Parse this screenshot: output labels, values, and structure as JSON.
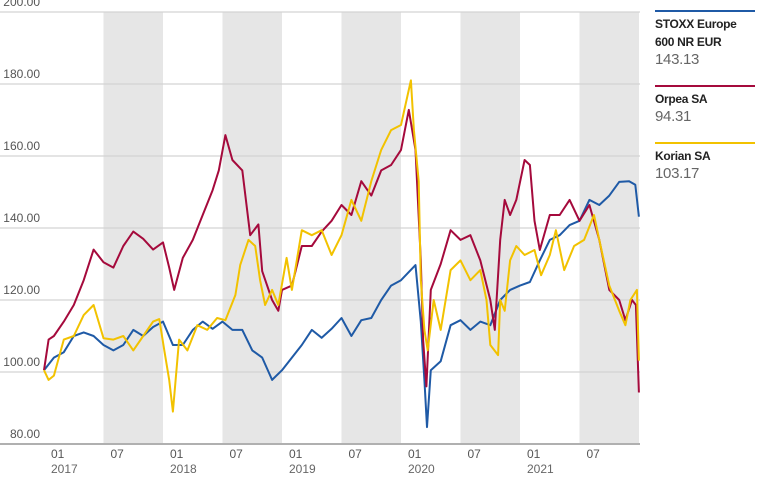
{
  "chart_data": {
    "type": "line",
    "title": "",
    "xlabel": "",
    "ylabel": "",
    "ylim": [
      80,
      200
    ],
    "xlim": [
      "2017-01-01",
      "2022-01-01"
    ],
    "yticks": [
      "80.00",
      "100.00",
      "120.00",
      "140.00",
      "160.00",
      "180.00",
      "200.00"
    ],
    "ytick_values": [
      80,
      100,
      120,
      140,
      160,
      180,
      200
    ],
    "xticks": [
      {
        "date": "2017-01-01",
        "label": "01",
        "year": "2017"
      },
      {
        "date": "2017-07-01",
        "label": "07",
        "year": ""
      },
      {
        "date": "2018-01-01",
        "label": "01",
        "year": "2018"
      },
      {
        "date": "2018-07-01",
        "label": "07",
        "year": ""
      },
      {
        "date": "2019-01-01",
        "label": "01",
        "year": "2019"
      },
      {
        "date": "2019-07-01",
        "label": "07",
        "year": ""
      },
      {
        "date": "2020-01-01",
        "label": "01",
        "year": "2020"
      },
      {
        "date": "2020-07-01",
        "label": "07",
        "year": ""
      },
      {
        "date": "2021-01-01",
        "label": "01",
        "year": "2021"
      },
      {
        "date": "2021-07-01",
        "label": "07",
        "year": ""
      }
    ],
    "shaded_periods": [
      [
        "2017-07-01",
        "2018-01-01"
      ],
      [
        "2018-07-01",
        "2019-01-01"
      ],
      [
        "2019-07-01",
        "2020-01-01"
      ],
      [
        "2020-07-01",
        "2021-01-01"
      ],
      [
        "2021-07-01",
        "2022-01-01"
      ]
    ],
    "grid": true,
    "legend_position": "right",
    "series": [
      {
        "name": "STOXX Europe 600 NR EUR",
        "name_line1": "STOXX Europe",
        "name_line2": "600 NR EUR",
        "last_value": "143.13",
        "color": "#1f5aa6",
        "points": [
          [
            "2017-01-01",
            100.5
          ],
          [
            "2017-02-01",
            104
          ],
          [
            "2017-03-01",
            105.5
          ],
          [
            "2017-04-01",
            110
          ],
          [
            "2017-05-01",
            111
          ],
          [
            "2017-06-01",
            110
          ],
          [
            "2017-07-01",
            107.5
          ],
          [
            "2017-08-01",
            106
          ],
          [
            "2017-09-01",
            107.5
          ],
          [
            "2017-10-01",
            111.7
          ],
          [
            "2017-11-01",
            110
          ],
          [
            "2017-12-01",
            112.5
          ],
          [
            "2018-01-01",
            114
          ],
          [
            "2018-02-01",
            107.5
          ],
          [
            "2018-03-01",
            107.5
          ],
          [
            "2018-04-01",
            111.7
          ],
          [
            "2018-05-01",
            114
          ],
          [
            "2018-06-01",
            112
          ],
          [
            "2018-07-01",
            114
          ],
          [
            "2018-08-01",
            111.7
          ],
          [
            "2018-09-01",
            111.7
          ],
          [
            "2018-10-01",
            106
          ],
          [
            "2018-11-01",
            104
          ],
          [
            "2018-12-01",
            97.8
          ],
          [
            "2019-01-01",
            100.5
          ],
          [
            "2019-02-01",
            104
          ],
          [
            "2019-03-01",
            107.5
          ],
          [
            "2019-04-01",
            111.7
          ],
          [
            "2019-05-01",
            109.5
          ],
          [
            "2019-06-01",
            112
          ],
          [
            "2019-07-01",
            115
          ],
          [
            "2019-08-01",
            110
          ],
          [
            "2019-09-01",
            114.4
          ],
          [
            "2019-10-01",
            115
          ],
          [
            "2019-11-01",
            120
          ],
          [
            "2019-12-01",
            124
          ],
          [
            "2020-01-01",
            125.5
          ],
          [
            "2020-02-15",
            129.7
          ],
          [
            "2020-03-01",
            114
          ],
          [
            "2020-03-12",
            97.8
          ],
          [
            "2020-03-20",
            84.7
          ],
          [
            "2020-04-01",
            100.5
          ],
          [
            "2020-05-01",
            103
          ],
          [
            "2020-06-01",
            113
          ],
          [
            "2020-07-01",
            114.4
          ],
          [
            "2020-08-01",
            111.7
          ],
          [
            "2020-09-01",
            114
          ],
          [
            "2020-10-01",
            113
          ],
          [
            "2020-11-01",
            120
          ],
          [
            "2020-12-01",
            122.8
          ],
          [
            "2021-01-01",
            124
          ],
          [
            "2021-02-01",
            125
          ],
          [
            "2021-03-01",
            131
          ],
          [
            "2021-04-01",
            136.7
          ],
          [
            "2021-05-01",
            138
          ],
          [
            "2021-06-01",
            140.8
          ],
          [
            "2021-07-01",
            142
          ],
          [
            "2021-08-01",
            147.8
          ],
          [
            "2021-09-01",
            146.4
          ],
          [
            "2021-10-01",
            149
          ],
          [
            "2021-11-01",
            152.8
          ],
          [
            "2021-12-01",
            153
          ],
          [
            "2021-12-20",
            152
          ],
          [
            "2021-12-31",
            143.13
          ]
        ]
      },
      {
        "name": "Orpea SA",
        "last_value": "94.31",
        "color": "#a50a3c",
        "points": [
          [
            "2017-01-01",
            100.5
          ],
          [
            "2017-01-15",
            109
          ],
          [
            "2017-02-01",
            110
          ],
          [
            "2017-03-01",
            114
          ],
          [
            "2017-04-01",
            118.6
          ],
          [
            "2017-05-01",
            125.5
          ],
          [
            "2017-06-01",
            134
          ],
          [
            "2017-07-01",
            130.5
          ],
          [
            "2017-08-01",
            129
          ],
          [
            "2017-09-01",
            135
          ],
          [
            "2017-10-01",
            139
          ],
          [
            "2017-11-01",
            137
          ],
          [
            "2017-12-01",
            134
          ],
          [
            "2018-01-01",
            136
          ],
          [
            "2018-01-20",
            129
          ],
          [
            "2018-02-05",
            122.8
          ],
          [
            "2018-03-01",
            131.7
          ],
          [
            "2018-04-01",
            136.7
          ],
          [
            "2018-05-01",
            143.6
          ],
          [
            "2018-06-01",
            150.5
          ],
          [
            "2018-06-20",
            156
          ],
          [
            "2018-07-10",
            165.8
          ],
          [
            "2018-08-01",
            158.9
          ],
          [
            "2018-09-01",
            156
          ],
          [
            "2018-09-25",
            138
          ],
          [
            "2018-10-20",
            141
          ],
          [
            "2018-11-01",
            128
          ],
          [
            "2018-12-01",
            120
          ],
          [
            "2018-12-20",
            117
          ],
          [
            "2019-01-01",
            122.8
          ],
          [
            "2019-02-01",
            124
          ],
          [
            "2019-03-01",
            135
          ],
          [
            "2019-04-01",
            135
          ],
          [
            "2019-05-01",
            139
          ],
          [
            "2019-06-01",
            142
          ],
          [
            "2019-07-01",
            146.4
          ],
          [
            "2019-08-01",
            143.6
          ],
          [
            "2019-09-01",
            153
          ],
          [
            "2019-10-01",
            149
          ],
          [
            "2019-11-01",
            156
          ],
          [
            "2019-12-01",
            157.5
          ],
          [
            "2020-01-01",
            161.7
          ],
          [
            "2020-01-25",
            172.8
          ],
          [
            "2020-02-15",
            161.7
          ],
          [
            "2020-03-01",
            131
          ],
          [
            "2020-03-08",
            109
          ],
          [
            "2020-03-18",
            96
          ],
          [
            "2020-04-01",
            122.8
          ],
          [
            "2020-05-01",
            130
          ],
          [
            "2020-06-01",
            139.4
          ],
          [
            "2020-07-01",
            136.7
          ],
          [
            "2020-08-01",
            138
          ],
          [
            "2020-09-01",
            131
          ],
          [
            "2020-10-01",
            120
          ],
          [
            "2020-10-15",
            111.7
          ],
          [
            "2020-11-01",
            136.7
          ],
          [
            "2020-11-15",
            147.8
          ],
          [
            "2020-12-01",
            143.6
          ],
          [
            "2020-12-20",
            147.8
          ],
          [
            "2021-01-15",
            158.9
          ],
          [
            "2021-02-01",
            157.5
          ],
          [
            "2021-02-15",
            142
          ],
          [
            "2021-03-01",
            133.9
          ],
          [
            "2021-04-01",
            143.6
          ],
          [
            "2021-05-01",
            143.6
          ],
          [
            "2021-06-01",
            147.8
          ],
          [
            "2021-07-01",
            142
          ],
          [
            "2021-08-01",
            146.4
          ],
          [
            "2021-09-01",
            136.7
          ],
          [
            "2021-10-01",
            122.8
          ],
          [
            "2021-11-01",
            120
          ],
          [
            "2021-11-20",
            114.4
          ],
          [
            "2021-12-10",
            120
          ],
          [
            "2021-12-22",
            118.6
          ],
          [
            "2021-12-31",
            94.31
          ]
        ]
      },
      {
        "name": "Korian SA",
        "last_value": "103.17",
        "color": "#f2c200",
        "points": [
          [
            "2017-01-01",
            100.5
          ],
          [
            "2017-01-15",
            97.8
          ],
          [
            "2017-02-01",
            99
          ],
          [
            "2017-03-01",
            109
          ],
          [
            "2017-04-01",
            110
          ],
          [
            "2017-05-01",
            115.8
          ],
          [
            "2017-06-01",
            118.6
          ],
          [
            "2017-07-01",
            109.4
          ],
          [
            "2017-08-01",
            109
          ],
          [
            "2017-09-01",
            110
          ],
          [
            "2017-10-01",
            106
          ],
          [
            "2017-11-01",
            110
          ],
          [
            "2017-12-01",
            114
          ],
          [
            "2017-12-20",
            114.7
          ],
          [
            "2018-01-05",
            106
          ],
          [
            "2018-01-20",
            97.8
          ],
          [
            "2018-02-01",
            89
          ],
          [
            "2018-02-20",
            109
          ],
          [
            "2018-03-15",
            106
          ],
          [
            "2018-04-15",
            113
          ],
          [
            "2018-05-15",
            111.7
          ],
          [
            "2018-06-15",
            115
          ],
          [
            "2018-07-10",
            114.4
          ],
          [
            "2018-08-10",
            121.4
          ],
          [
            "2018-08-25",
            129.7
          ],
          [
            "2018-09-20",
            136.7
          ],
          [
            "2018-10-10",
            135
          ],
          [
            "2018-10-25",
            125.5
          ],
          [
            "2018-11-10",
            118.6
          ],
          [
            "2018-12-01",
            122.8
          ],
          [
            "2018-12-20",
            118.6
          ],
          [
            "2019-01-15",
            131.7
          ],
          [
            "2019-02-01",
            122.8
          ],
          [
            "2019-03-01",
            139.4
          ],
          [
            "2019-04-01",
            138
          ],
          [
            "2019-05-01",
            139.4
          ],
          [
            "2019-06-01",
            132.5
          ],
          [
            "2019-07-01",
            138
          ],
          [
            "2019-08-01",
            147.8
          ],
          [
            "2019-09-01",
            142
          ],
          [
            "2019-10-01",
            153
          ],
          [
            "2019-11-01",
            161.7
          ],
          [
            "2019-12-01",
            167.2
          ],
          [
            "2020-01-01",
            168.6
          ],
          [
            "2020-02-01",
            181
          ],
          [
            "2020-02-10",
            167.2
          ],
          [
            "2020-02-25",
            153
          ],
          [
            "2020-03-01",
            125.5
          ],
          [
            "2020-03-12",
            111.7
          ],
          [
            "2020-03-22",
            106
          ],
          [
            "2020-04-10",
            120
          ],
          [
            "2020-05-01",
            111.7
          ],
          [
            "2020-06-01",
            128.3
          ],
          [
            "2020-07-01",
            131
          ],
          [
            "2020-08-01",
            125.5
          ],
          [
            "2020-09-01",
            128.3
          ],
          [
            "2020-09-20",
            120
          ],
          [
            "2020-10-01",
            107.5
          ],
          [
            "2020-10-25",
            104.7
          ],
          [
            "2020-11-01",
            120
          ],
          [
            "2020-11-15",
            117
          ],
          [
            "2020-12-01",
            131
          ],
          [
            "2020-12-20",
            135
          ],
          [
            "2021-01-15",
            132.5
          ],
          [
            "2021-02-15",
            133.9
          ],
          [
            "2021-03-05",
            126.9
          ],
          [
            "2021-04-01",
            132.5
          ],
          [
            "2021-04-20",
            139.4
          ],
          [
            "2021-05-15",
            128.3
          ],
          [
            "2021-06-15",
            135
          ],
          [
            "2021-07-15",
            136.7
          ],
          [
            "2021-08-15",
            143.6
          ],
          [
            "2021-09-01",
            136.7
          ],
          [
            "2021-10-01",
            124
          ],
          [
            "2021-11-01",
            117
          ],
          [
            "2021-11-20",
            113
          ],
          [
            "2021-12-05",
            120
          ],
          [
            "2021-12-25",
            122.8
          ],
          [
            "2021-12-31",
            103.17
          ]
        ]
      }
    ]
  }
}
